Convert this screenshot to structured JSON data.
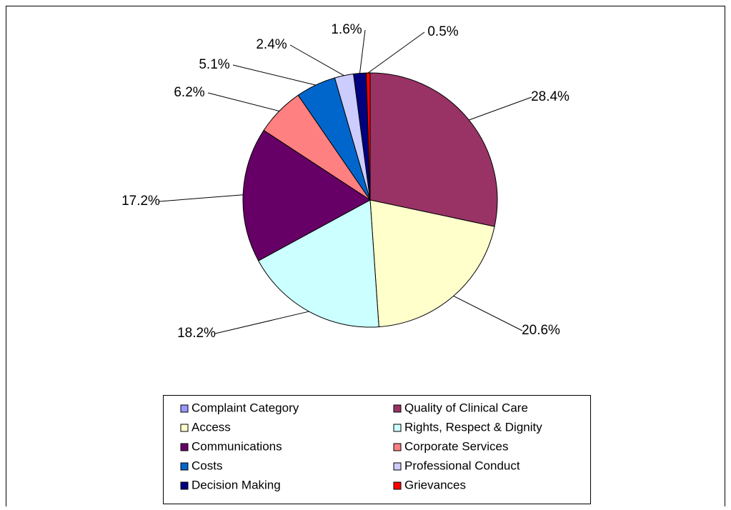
{
  "chart_data": {
    "type": "pie",
    "categories": [
      "Complaint Category",
      "Quality of Clinical Care",
      "Access",
      "Rights, Respect & Dignity",
      "Communications",
      "Corporate Services",
      "Costs",
      "Professional Conduct",
      "Decision Making",
      "Grievances"
    ],
    "values": [
      null,
      28.4,
      20.6,
      18.2,
      17.2,
      6.2,
      5.1,
      2.4,
      1.6,
      0.5
    ],
    "value_labels": [
      null,
      "28.4%",
      "20.6%",
      "18.2%",
      "17.2%",
      "6.2%",
      "5.1%",
      "2.4%",
      "1.6%",
      "0.5%"
    ],
    "colors": [
      "#9999ff",
      "#993366",
      "#ffffcc",
      "#ccffff",
      "#660066",
      "#ff8080",
      "#0066cc",
      "#ccccff",
      "#000080",
      "#ff0000"
    ],
    "legend": "bottom"
  }
}
